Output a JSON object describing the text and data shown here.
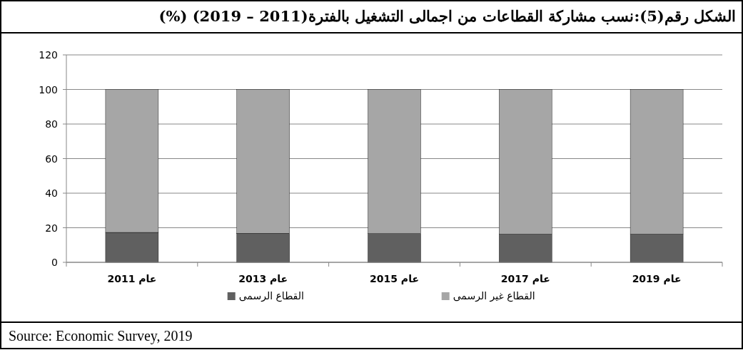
{
  "chart_data": {
    "type": "bar",
    "title": "الشكل رقم(5):نسب مشاركة القطاعات من اجمالى التشغيل بالفترة(2011 – 2019)   (%)",
    "categories": [
      "عام 2011",
      "عام 2013",
      "عام 2015",
      "عام 2017",
      "عام 2019"
    ],
    "series": [
      {
        "name": "القطاع الرسمى",
        "color": "#606060",
        "values": [
          17.3,
          16.8,
          16.6,
          16.3,
          16.3
        ]
      },
      {
        "name": "القطاع غير الرسمى",
        "color": "#a6a6a6",
        "values": [
          82.7,
          83.2,
          83.4,
          83.7,
          83.7
        ]
      }
    ],
    "stacked": true,
    "ylim": [
      0,
      120
    ],
    "yticks": [
      0,
      20,
      40,
      60,
      80,
      100,
      120
    ],
    "grid": "y",
    "legend": "bottom",
    "annotations": [
      "Source: Economic Survey, 2019"
    ]
  }
}
